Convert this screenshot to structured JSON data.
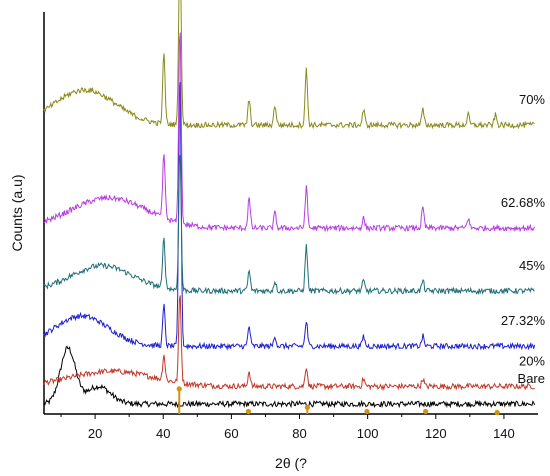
{
  "chart_data": {
    "type": "line",
    "title": "",
    "xlabel": "2θ (?",
    "ylabel": "Counts (a.u)",
    "xlim": [
      5,
      150
    ],
    "x_ticks": [
      20,
      40,
      60,
      80,
      100,
      120,
      140
    ],
    "x_tick_labels": [
      "20",
      "40",
      "60",
      "80",
      "100",
      "120",
      "140"
    ],
    "y_ticks_shown": false,
    "grid": false,
    "legend": "inline labels at right end of each trace",
    "series": [
      {
        "name": "Bare",
        "color": "#000000",
        "baseline": 2.0,
        "hump": [
          {
            "center": 12,
            "height": 11,
            "width": 2.2
          },
          {
            "center": 21,
            "height": 3.5,
            "width": 3.5
          }
        ],
        "peaks": []
      },
      {
        "name": "20%",
        "color": "#c0392b",
        "baseline": 5.5,
        "hump": [
          {
            "center": 25,
            "height": 3.0,
            "width": 12
          }
        ],
        "peaks": [
          {
            "x": 40.2,
            "h": 5
          },
          {
            "x": 44.9,
            "h": 18
          },
          {
            "x": 65.2,
            "h": 3
          },
          {
            "x": 82.0,
            "h": 4
          },
          {
            "x": 98.8,
            "h": 1.5
          },
          {
            "x": 116.2,
            "h": 1.5
          }
        ]
      },
      {
        "name": "27.32%",
        "color": "#1f1fd6",
        "baseline": 13.5,
        "hump": [
          {
            "center": 16,
            "height": 6,
            "width": 8
          }
        ],
        "peaks": [
          {
            "x": 40.2,
            "h": 8
          },
          {
            "x": 44.9,
            "h": 55
          },
          {
            "x": 65.2,
            "h": 4
          },
          {
            "x": 72.8,
            "h": 2
          },
          {
            "x": 82.0,
            "h": 5
          },
          {
            "x": 98.8,
            "h": 2
          },
          {
            "x": 116.2,
            "h": 2
          }
        ]
      },
      {
        "name": "45%",
        "color": "#1f6f78",
        "baseline": 24.5,
        "hump": [
          {
            "center": 22,
            "height": 5,
            "width": 9
          }
        ],
        "peaks": [
          {
            "x": 40.2,
            "h": 10
          },
          {
            "x": 44.9,
            "h": 28
          },
          {
            "x": 65.2,
            "h": 4
          },
          {
            "x": 72.8,
            "h": 2
          },
          {
            "x": 82.0,
            "h": 9
          },
          {
            "x": 98.8,
            "h": 2
          },
          {
            "x": 116.2,
            "h": 2
          }
        ]
      },
      {
        "name": "62.68%",
        "color": "#b53fe0",
        "baseline": 37.0,
        "hump": [
          {
            "center": 24,
            "height": 6,
            "width": 11
          }
        ],
        "peaks": [
          {
            "x": 40.2,
            "h": 13
          },
          {
            "x": 44.9,
            "h": 40
          },
          {
            "x": 65.2,
            "h": 6
          },
          {
            "x": 72.8,
            "h": 3
          },
          {
            "x": 82.0,
            "h": 8
          },
          {
            "x": 98.8,
            "h": 2
          },
          {
            "x": 116.2,
            "h": 4
          },
          {
            "x": 129.5,
            "h": 2
          }
        ]
      },
      {
        "name": "70%",
        "color": "#8a8a1a",
        "baseline": 57.5,
        "hump": [
          {
            "center": 17,
            "height": 7,
            "width": 9
          }
        ],
        "peaks": [
          {
            "x": 40.2,
            "h": 14
          },
          {
            "x": 44.9,
            "h": 38
          },
          {
            "x": 65.2,
            "h": 5
          },
          {
            "x": 72.8,
            "h": 4
          },
          {
            "x": 82.0,
            "h": 11
          },
          {
            "x": 98.8,
            "h": 3
          },
          {
            "x": 116.2,
            "h": 3
          },
          {
            "x": 129.5,
            "h": 2
          },
          {
            "x": 137.5,
            "h": 2
          }
        ]
      }
    ],
    "reference_markers": {
      "color": "#d4940a",
      "stems": [
        {
          "x": 44.7,
          "h": 5.0
        },
        {
          "x": 65.0,
          "h": 0.5
        },
        {
          "x": 82.3,
          "h": 1.3
        },
        {
          "x": 99.8,
          "h": 0.5
        },
        {
          "x": 117.0,
          "h": 0.5
        },
        {
          "x": 138.0,
          "h": 0.3
        }
      ]
    },
    "ylim": [
      0,
      80
    ]
  }
}
